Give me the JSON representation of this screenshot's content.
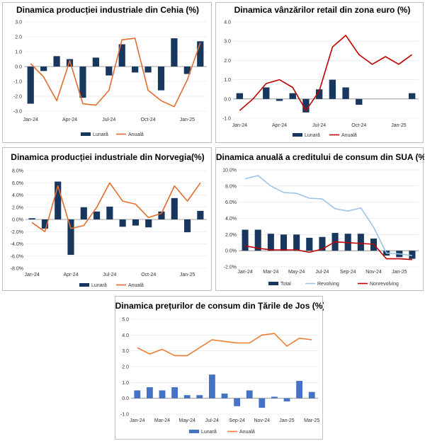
{
  "chart_data": [
    {
      "type": "bar",
      "title": "Dinamica producției industriale din Cehia (%)",
      "xlabel": "",
      "ylabel": "",
      "ylim": [
        -3.0,
        3.0
      ],
      "yticks": [
        "3.0",
        "2.0",
        "1.0",
        "0.0",
        "-1.0",
        "-2.0",
        "-3.0"
      ],
      "ytick_values": [
        3,
        2,
        1,
        0,
        -1,
        -2,
        -3
      ],
      "categories": [
        "Jan-24",
        "Feb-24",
        "Mar-24",
        "Apr-24",
        "May-24",
        "Jun-24",
        "Jul-24",
        "Aug-24",
        "Sep-24",
        "Oct-24",
        "Nov-24",
        "Dec-24",
        "Jan-25",
        "Feb-25"
      ],
      "xtick_labels": [
        "Jan-24",
        "",
        "",
        "Apr-24",
        "",
        "",
        "Jul-24",
        "",
        "",
        "Oct-24",
        "",
        "",
        "Jan-25",
        ""
      ],
      "series": [
        {
          "name": "Lunară",
          "kind": "bar",
          "color": "#17375e",
          "values": [
            -2.5,
            -0.3,
            0.7,
            0.5,
            -2.1,
            0.6,
            -0.6,
            1.5,
            -0.4,
            -0.4,
            -1.6,
            1.9,
            -0.5,
            1.7
          ]
        },
        {
          "name": "Anuală",
          "kind": "line",
          "color": "#e46c2e",
          "values": [
            0.2,
            -0.7,
            -2.3,
            0.4,
            -2.5,
            -2.6,
            -1.6,
            1.8,
            1.9,
            -1.6,
            -2.3,
            -2.7,
            -0.9,
            1.6
          ]
        }
      ]
    },
    {
      "type": "bar",
      "title": "Dinamica vânzărilor retail din zona euro (%)",
      "xlabel": "",
      "ylabel": "",
      "ylim": [
        -1.0,
        4.0
      ],
      "yticks": [
        "4.0",
        "3.0",
        "2.0",
        "1.0",
        "0.0",
        "-1.0"
      ],
      "ytick_values": [
        4,
        3,
        2,
        1,
        0,
        -1
      ],
      "categories": [
        "Jan-24",
        "Feb-24",
        "Mar-24",
        "Apr-24",
        "May-24",
        "Jun-24",
        "Jul-24",
        "Aug-24",
        "Sep-24",
        "Oct-24",
        "Nov-24",
        "Dec-24",
        "Jan-25",
        "Feb-25"
      ],
      "xtick_labels": [
        "Jan-24",
        "",
        "",
        "Apr-24",
        "",
        "",
        "Jul-24",
        "",
        "",
        "Oct-24",
        "",
        "",
        "Jan-25",
        ""
      ],
      "series": [
        {
          "name": "Lunară",
          "kind": "bar",
          "color": "#17375e",
          "values": [
            0.3,
            0.0,
            0.6,
            -0.1,
            0.3,
            -0.7,
            0.5,
            1.0,
            0.6,
            -0.3,
            0.0,
            0.0,
            0.0,
            0.3
          ]
        },
        {
          "name": "Anuală",
          "kind": "line",
          "color": "#c00000",
          "values": [
            -0.6,
            0.0,
            0.8,
            1.0,
            0.6,
            -0.6,
            0.4,
            2.7,
            3.3,
            2.3,
            1.8,
            2.2,
            1.8,
            2.3
          ]
        }
      ]
    },
    {
      "type": "bar",
      "title": "Dinamica producției industriale din Norvegia(%)",
      "xlabel": "",
      "ylabel": "",
      "ylim": [
        -8.0,
        8.0
      ],
      "yticks": [
        "8.0%",
        "6.0%",
        "4.0%",
        "2.0%",
        "0.0%",
        "-2.0%",
        "-4.0%",
        "-6.0%",
        "-8.0%"
      ],
      "ytick_values": [
        8,
        6,
        4,
        2,
        0,
        -2,
        -4,
        -6,
        -8
      ],
      "categories": [
        "Jan-24",
        "Feb-24",
        "Mar-24",
        "Apr-24",
        "May-24",
        "Jun-24",
        "Jul-24",
        "Aug-24",
        "Sep-24",
        "Oct-24",
        "Nov-24",
        "Dec-24",
        "Jan-25",
        "Feb-25"
      ],
      "xtick_labels": [
        "Jan-24",
        "",
        "",
        "Apr-24",
        "",
        "",
        "Jul-24",
        "",
        "",
        "Oct-24",
        "",
        "",
        "Jan-25",
        ""
      ],
      "series": [
        {
          "name": "Lunară",
          "kind": "bar",
          "color": "#17375e",
          "values": [
            0.2,
            -1.5,
            6.2,
            -5.8,
            2.0,
            1.3,
            2.1,
            -1.2,
            -1.0,
            -1.3,
            1.3,
            3.5,
            -2.1,
            1.4
          ]
        },
        {
          "name": "Anuală",
          "kind": "line",
          "color": "#e46c2e",
          "values": [
            -0.5,
            -2.0,
            5.5,
            -1.5,
            -1.0,
            2.0,
            6.0,
            3.0,
            2.5,
            0.3,
            1.0,
            5.5,
            3.0,
            6.0
          ]
        }
      ]
    },
    {
      "type": "bar",
      "title": "Dinamica anuală a creditului de consum din SUA (%)",
      "xlabel": "",
      "ylabel": "",
      "ylim": [
        -2.0,
        10.0
      ],
      "yticks": [
        "10.0%",
        "8.0%",
        "6.0%",
        "4.0%",
        "2.0%",
        "0.0%",
        "-2.0%"
      ],
      "ytick_values": [
        10,
        8,
        6,
        4,
        2,
        0,
        -2
      ],
      "categories": [
        "Jan-24",
        "Feb-24",
        "Mar-24",
        "Apr-24",
        "May-24",
        "Jun-24",
        "Jul-24",
        "Aug-24",
        "Sep-24",
        "Oct-24",
        "Nov-24",
        "Dec-24",
        "Jan-25",
        "Feb-25"
      ],
      "xtick_labels": [
        "Jan-24",
        "",
        "Mar-24",
        "",
        "May-24",
        "",
        "Jul-24",
        "",
        "Sep-24",
        "",
        "Nov-24",
        "",
        "Jan-25",
        ""
      ],
      "series": [
        {
          "name": "Total",
          "kind": "bar",
          "color": "#17375e",
          "values": [
            2.6,
            2.6,
            2.1,
            2.0,
            2.0,
            1.6,
            1.7,
            2.2,
            2.1,
            2.1,
            1.5,
            -0.6,
            -0.8,
            -1.0
          ]
        },
        {
          "name": "Revolving",
          "kind": "line",
          "color": "#9dc3e6",
          "values": [
            8.9,
            9.3,
            8.0,
            7.2,
            7.1,
            6.5,
            6.4,
            5.2,
            4.9,
            5.3,
            2.9,
            -0.3,
            -0.4,
            -0.6
          ]
        },
        {
          "name": "Nonrevolving",
          "kind": "line",
          "color": "#c00000",
          "values": [
            0.6,
            0.3,
            0.1,
            0.1,
            0.1,
            -0.2,
            0.2,
            1.1,
            1.0,
            0.9,
            0.8,
            -1.0,
            -1.0,
            -1.1
          ]
        }
      ]
    },
    {
      "type": "bar",
      "title": "Dinamica prețurilor de consum din Țările de Jos (%)",
      "xlabel": "",
      "ylabel": "",
      "ylim": [
        -1.0,
        5.0
      ],
      "yticks": [
        "5.0",
        "4.0",
        "3.0",
        "2.0",
        "1.0",
        "0.0",
        "-1.0"
      ],
      "ytick_values": [
        5,
        4,
        3,
        2,
        1,
        0,
        -1
      ],
      "categories": [
        "Jan-24",
        "Feb-24",
        "Mar-24",
        "Apr-24",
        "May-24",
        "Jun-24",
        "Jul-24",
        "Aug-24",
        "Sep-24",
        "Oct-24",
        "Nov-24",
        "Dec-24",
        "Jan-25",
        "Feb-25",
        "Mar-25"
      ],
      "xtick_labels": [
        "Jan-24",
        "",
        "Mar-24",
        "",
        "May-24",
        "",
        "Jul-24",
        "",
        "Sep-24",
        "",
        "Nov-24",
        "",
        "Jan-25",
        "",
        "Mar-25"
      ],
      "series": [
        {
          "name": "Lunară",
          "kind": "bar",
          "color": "#4472c4",
          "values": [
            0.5,
            0.7,
            0.5,
            0.7,
            0.2,
            0.2,
            1.5,
            0.3,
            -0.5,
            0.5,
            -0.6,
            0.1,
            -0.2,
            1.1,
            0.4
          ]
        },
        {
          "name": "Anuală",
          "kind": "line",
          "color": "#ed7d31",
          "values": [
            3.2,
            2.8,
            3.1,
            2.7,
            2.7,
            3.2,
            3.7,
            3.6,
            3.5,
            3.5,
            4.0,
            4.1,
            3.3,
            3.8,
            3.7
          ]
        }
      ]
    }
  ]
}
